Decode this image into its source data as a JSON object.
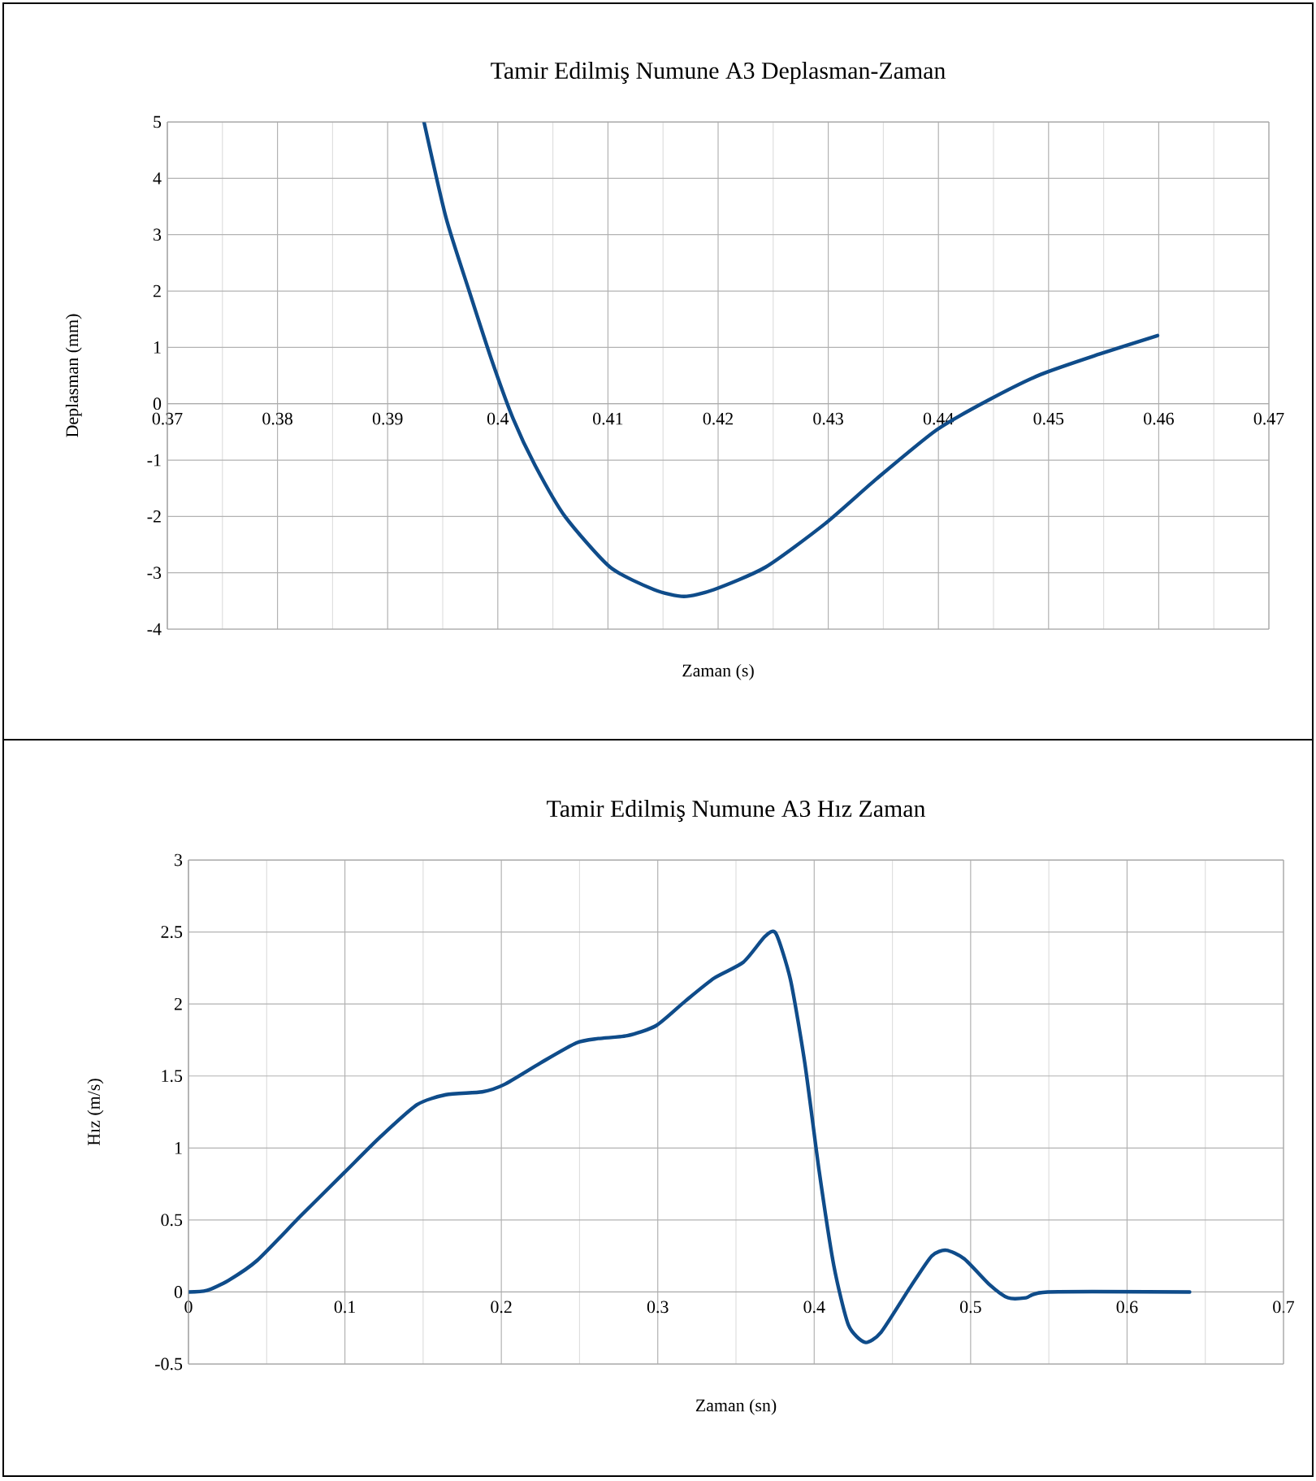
{
  "chart_data": [
    {
      "type": "line",
      "title": "Tamir Edilmiş Numune A3 Deplasman-Zaman",
      "xlabel": "Zaman (s)",
      "ylabel": "Deplasman (mm)",
      "xlim": [
        0.37,
        0.47
      ],
      "ylim": [
        -4,
        5
      ],
      "xticks": [
        0.37,
        0.38,
        0.39,
        0.4,
        0.41,
        0.42,
        0.43,
        0.44,
        0.45,
        0.46,
        0.47
      ],
      "yticks": [
        -4,
        -3,
        -2,
        -1,
        0,
        1,
        2,
        3,
        4,
        5
      ],
      "grid": true,
      "x": [
        0.3933,
        0.3953,
        0.3974,
        0.3994,
        0.4014,
        0.4034,
        0.4061,
        0.4102,
        0.4142,
        0.4169,
        0.4196,
        0.4243,
        0.4297,
        0.4344,
        0.4398,
        0.4445,
        0.4493,
        0.4546,
        0.4599
      ],
      "series": [
        {
          "color": "#0f4c8a",
          "values": [
            5,
            3.3,
            2.0,
            0.8,
            -0.27,
            -1.1,
            -2.0,
            -2.9,
            -3.3,
            -3.42,
            -3.3,
            -2.9,
            -2.13,
            -1.33,
            -0.47,
            0.06,
            0.52,
            0.88,
            1.21
          ]
        }
      ]
    },
    {
      "type": "line",
      "title": "Tamir Edilmiş Numune A3 Hız Zaman",
      "xlabel": "Zaman (sn)",
      "ylabel": "Hız (m/s)",
      "xlim": [
        0,
        0.7
      ],
      "ylim": [
        -0.5,
        3
      ],
      "xticks": [
        0,
        0.1,
        0.2,
        0.3,
        0.4,
        0.5,
        0.6,
        0.7
      ],
      "yticks": [
        -0.5,
        0,
        0.5,
        1,
        1.5,
        2,
        2.5,
        3
      ],
      "grid": true,
      "x": [
        0,
        0.0116,
        0.0255,
        0.044,
        0.0719,
        0.0997,
        0.1229,
        0.146,
        0.1646,
        0.1878,
        0.2017,
        0.2249,
        0.248,
        0.262,
        0.2805,
        0.299,
        0.3176,
        0.3361,
        0.3547,
        0.3686,
        0.3755,
        0.3848,
        0.394,
        0.4033,
        0.4126,
        0.4219,
        0.4325,
        0.4427,
        0.4612,
        0.4751,
        0.4844,
        0.496,
        0.5122,
        0.5238,
        0.5354,
        0.5493,
        0.64
      ],
      "series": [
        {
          "color": "#0f4c8a",
          "values": [
            0,
            0.01,
            0.08,
            0.22,
            0.53,
            0.83,
            1.08,
            1.3,
            1.37,
            1.39,
            1.44,
            1.59,
            1.73,
            1.76,
            1.78,
            1.85,
            2.02,
            2.18,
            2.29,
            2.47,
            2.49,
            2.17,
            1.59,
            0.83,
            0.18,
            -0.23,
            -0.35,
            -0.28,
            0.03,
            0.25,
            0.29,
            0.23,
            0.05,
            -0.04,
            -0.04,
            0,
            0
          ]
        }
      ]
    }
  ]
}
